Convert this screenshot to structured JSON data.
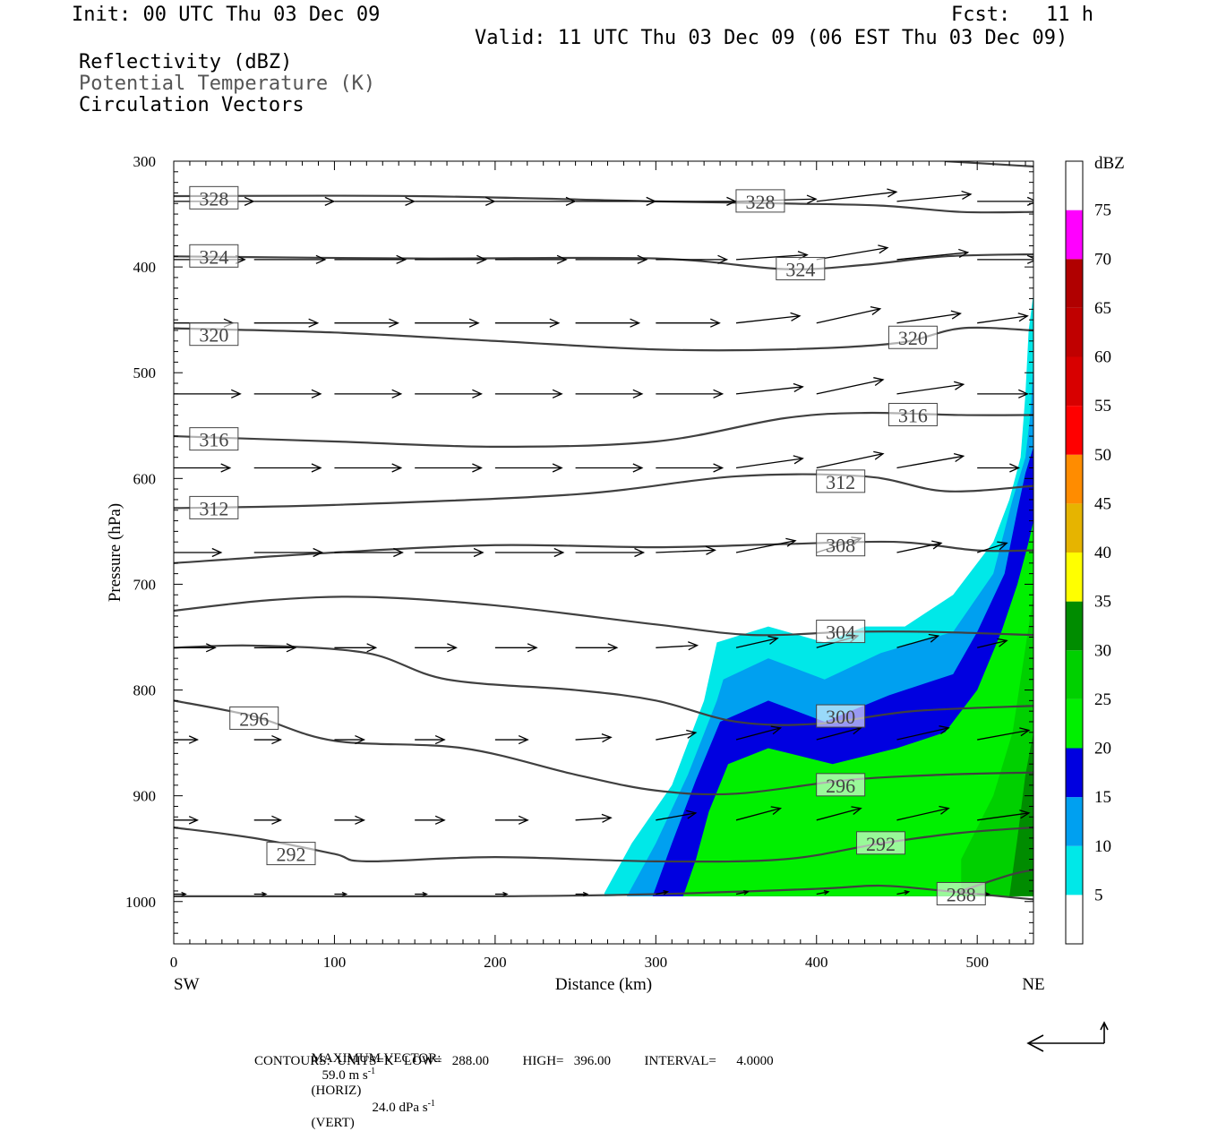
{
  "header": {
    "init": "Init: 00 UTC Thu 03 Dec 09",
    "fcst": "Fcst:   11 h",
    "valid": "Valid: 11 UTC Thu 03 Dec 09 (06 EST Thu 03 Dec 09)",
    "field1": "Reflectivity (dBZ)",
    "field2": "Potential Temperature (K)",
    "field3": "Circulation Vectors"
  },
  "footer": {
    "max_label": "MAXIMUM VECTOR:",
    "max_horiz": "59.0 m s",
    "horiz_tag": "(HORIZ)",
    "max_vert": "24.0 dPa s",
    "vert_tag": "(VERT)",
    "sup": "-1",
    "contours": "CONTOURS:  UNITS=K   LOW=   288.00          HIGH=   396.00          INTERVAL=      4.0000"
  },
  "colors": {
    "c5": "#00e8e8",
    "c10": "#00a0f0",
    "c15": "#0000e0",
    "c20": "#00f000",
    "c25": "#00d000",
    "c30": "#008c00",
    "c35": "#ffff00",
    "c40": "#e6b400",
    "c45": "#ff8c00",
    "c50": "#ff0000",
    "c55": "#d80000",
    "c60": "#c00000",
    "c65": "#b00000",
    "c70": "#ff00ff",
    "c75": "#9955cc",
    "contour": "#404040"
  },
  "chart_data": {
    "type": "cross-section",
    "xlabel": "Distance (km)",
    "ylabel": "Pressure (hPa)",
    "xlim": [
      0,
      535
    ],
    "ylim": [
      300,
      1040
    ],
    "x_ticks": [
      "0",
      "100",
      "200",
      "300",
      "400",
      "500"
    ],
    "y_ticks": [
      "300",
      "400",
      "500",
      "600",
      "700",
      "800",
      "900",
      "1000"
    ],
    "x_left": "SW",
    "x_right": "NE",
    "colorbar": {
      "unit": "dBZ",
      "levels": [
        "5",
        "10",
        "15",
        "20",
        "25",
        "30",
        "35",
        "40",
        "45",
        "50",
        "55",
        "60",
        "65",
        "70",
        "75"
      ]
    },
    "reflectivity_regions": [
      {
        "dbz": 5,
        "points": [
          [
            268,
            992
          ],
          [
            285,
            945
          ],
          [
            310,
            890
          ],
          [
            330,
            810
          ],
          [
            338,
            755
          ],
          [
            370,
            740
          ],
          [
            405,
            755
          ],
          [
            430,
            740
          ],
          [
            455,
            740
          ],
          [
            485,
            710
          ],
          [
            510,
            660
          ],
          [
            520,
            620
          ],
          [
            527,
            580
          ],
          [
            530,
            520
          ],
          [
            532,
            460
          ],
          [
            535,
            425
          ],
          [
            535,
            995
          ],
          [
            400,
            990
          ],
          [
            268,
            995
          ]
        ]
      },
      {
        "dbz": 10,
        "points": [
          [
            282,
            995
          ],
          [
            300,
            945
          ],
          [
            320,
            880
          ],
          [
            338,
            810
          ],
          [
            342,
            790
          ],
          [
            370,
            770
          ],
          [
            405,
            790
          ],
          [
            440,
            765
          ],
          [
            485,
            745
          ],
          [
            510,
            690
          ],
          [
            522,
            620
          ],
          [
            530,
            580
          ],
          [
            533,
            540
          ],
          [
            535,
            490
          ],
          [
            535,
            995
          ],
          [
            282,
            995
          ]
        ]
      },
      {
        "dbz": 15,
        "points": [
          [
            298,
            995
          ],
          [
            310,
            945
          ],
          [
            325,
            885
          ],
          [
            340,
            830
          ],
          [
            370,
            810
          ],
          [
            405,
            830
          ],
          [
            445,
            805
          ],
          [
            485,
            785
          ],
          [
            500,
            745
          ],
          [
            517,
            690
          ],
          [
            525,
            630
          ],
          [
            530,
            595
          ],
          [
            535,
            570
          ],
          [
            535,
            995
          ],
          [
            298,
            995
          ]
        ]
      },
      {
        "dbz": 20,
        "points": [
          [
            317,
            995
          ],
          [
            325,
            960
          ],
          [
            333,
            915
          ],
          [
            345,
            870
          ],
          [
            370,
            855
          ],
          [
            410,
            870
          ],
          [
            450,
            855
          ],
          [
            480,
            840
          ],
          [
            500,
            800
          ],
          [
            515,
            745
          ],
          [
            525,
            700
          ],
          [
            532,
            660
          ],
          [
            535,
            640
          ],
          [
            535,
            995
          ],
          [
            317,
            995
          ]
        ]
      },
      {
        "dbz": 25,
        "points": [
          [
            490,
            995
          ],
          [
            490,
            960
          ],
          [
            510,
            900
          ],
          [
            522,
            840
          ],
          [
            530,
            760
          ],
          [
            535,
            710
          ],
          [
            535,
            995
          ]
        ]
      },
      {
        "dbz": 30,
        "points": [
          [
            520,
            995
          ],
          [
            525,
            940
          ],
          [
            530,
            880
          ],
          [
            535,
            840
          ],
          [
            535,
            995
          ]
        ]
      }
    ],
    "theta_contours": [
      {
        "label": "328",
        "points": [
          [
            0,
            333
          ],
          [
            150,
            333
          ],
          [
            300,
            338
          ],
          [
            380,
            340
          ],
          [
            440,
            342
          ],
          [
            490,
            348
          ],
          [
            535,
            348
          ]
        ]
      },
      {
        "label": "324",
        "points": [
          [
            0,
            390
          ],
          [
            150,
            392
          ],
          [
            300,
            392
          ],
          [
            380,
            402
          ],
          [
            430,
            398
          ],
          [
            480,
            390
          ],
          [
            535,
            388
          ]
        ]
      },
      {
        "label": "320",
        "points": [
          [
            0,
            458
          ],
          [
            100,
            462
          ],
          [
            200,
            470
          ],
          [
            300,
            478
          ],
          [
            380,
            478
          ],
          [
            450,
            472
          ],
          [
            490,
            458
          ],
          [
            535,
            460
          ]
        ]
      },
      {
        "label": "316",
        "points": [
          [
            0,
            560
          ],
          [
            100,
            565
          ],
          [
            200,
            570
          ],
          [
            300,
            565
          ],
          [
            380,
            543
          ],
          [
            430,
            538
          ],
          [
            490,
            540
          ],
          [
            535,
            540
          ]
        ]
      },
      {
        "label": "312",
        "points": [
          [
            0,
            628
          ],
          [
            100,
            625
          ],
          [
            250,
            615
          ],
          [
            350,
            598
          ],
          [
            430,
            598
          ],
          [
            480,
            612
          ],
          [
            535,
            607
          ]
        ]
      },
      {
        "label": "308",
        "points": [
          [
            0,
            680
          ],
          [
            100,
            670
          ],
          [
            200,
            663
          ],
          [
            300,
            665
          ],
          [
            380,
            662
          ],
          [
            450,
            660
          ],
          [
            500,
            668
          ],
          [
            535,
            668
          ]
        ]
      },
      {
        "label": "304",
        "points": [
          [
            0,
            725
          ],
          [
            60,
            715
          ],
          [
            120,
            712
          ],
          [
            200,
            720
          ],
          [
            300,
            738
          ],
          [
            360,
            748
          ],
          [
            420,
            745
          ],
          [
            470,
            745
          ],
          [
            535,
            748
          ]
        ]
      },
      {
        "label": "300",
        "points": [
          [
            0,
            760
          ],
          [
            50,
            758
          ],
          [
            120,
            765
          ],
          [
            170,
            790
          ],
          [
            250,
            800
          ],
          [
            300,
            810
          ],
          [
            350,
            830
          ],
          [
            400,
            832
          ],
          [
            460,
            820
          ],
          [
            535,
            815
          ]
        ]
      },
      {
        "label": "296",
        "points": [
          [
            0,
            810
          ],
          [
            50,
            825
          ],
          [
            100,
            848
          ],
          [
            180,
            855
          ],
          [
            250,
            880
          ],
          [
            300,
            895
          ],
          [
            350,
            898
          ],
          [
            420,
            885
          ],
          [
            480,
            880
          ],
          [
            535,
            878
          ]
        ]
      },
      {
        "label": "292",
        "points": [
          [
            0,
            930
          ],
          [
            50,
            940
          ],
          [
            100,
            955
          ],
          [
            120,
            962
          ],
          [
            200,
            958
          ],
          [
            300,
            962
          ],
          [
            380,
            960
          ],
          [
            440,
            945
          ],
          [
            490,
            935
          ],
          [
            535,
            930
          ]
        ]
      },
      {
        "label": "288",
        "points": [
          [
            0,
            995
          ],
          [
            200,
            995
          ],
          [
            300,
            993
          ],
          [
            400,
            988
          ],
          [
            440,
            985
          ],
          [
            480,
            990
          ],
          [
            535,
            998
          ]
        ]
      },
      {
        "label": "",
        "points": [
          [
            490,
            990
          ],
          [
            520,
            975
          ],
          [
            535,
            970
          ]
        ]
      },
      {
        "label": "",
        "points": [
          [
            480,
            300
          ],
          [
            535,
            305
          ]
        ]
      }
    ],
    "contour_labels": [
      {
        "text": "328",
        "x": 25,
        "p": 335
      },
      {
        "text": "328",
        "x": 365,
        "p": 338
      },
      {
        "text": "324",
        "x": 25,
        "p": 390
      },
      {
        "text": "324",
        "x": 390,
        "p": 402
      },
      {
        "text": "320",
        "x": 25,
        "p": 464
      },
      {
        "text": "320",
        "x": 460,
        "p": 467
      },
      {
        "text": "316",
        "x": 25,
        "p": 563
      },
      {
        "text": "316",
        "x": 460,
        "p": 540
      },
      {
        "text": "312",
        "x": 25,
        "p": 628
      },
      {
        "text": "312",
        "x": 415,
        "p": 603
      },
      {
        "text": "308",
        "x": 415,
        "p": 663
      },
      {
        "text": "304",
        "x": 415,
        "p": 745
      },
      {
        "text": "300",
        "x": 415,
        "p": 825
      },
      {
        "text": "296",
        "x": 50,
        "p": 827
      },
      {
        "text": "296",
        "x": 415,
        "p": 890
      },
      {
        "text": "292",
        "x": 73,
        "p": 955
      },
      {
        "text": "292",
        "x": 440,
        "p": 945
      },
      {
        "text": "288",
        "x": 490,
        "p": 993
      }
    ],
    "vector_rows": [
      {
        "p": 338,
        "x": [
          0,
          50,
          100,
          150,
          200,
          250,
          300,
          350,
          400,
          450,
          500
        ]
      },
      {
        "p": 393,
        "x": [
          0,
          50,
          100,
          150,
          200,
          250,
          300,
          350,
          400,
          450,
          500
        ]
      },
      {
        "p": 453,
        "x": [
          0,
          50,
          100,
          150,
          200,
          250,
          300,
          350,
          400,
          450,
          500
        ]
      },
      {
        "p": 520,
        "x": [
          0,
          50,
          100,
          150,
          200,
          250,
          300,
          350,
          400,
          450,
          500
        ]
      },
      {
        "p": 590,
        "x": [
          0,
          50,
          100,
          150,
          200,
          250,
          300,
          350,
          400,
          450,
          500
        ]
      },
      {
        "p": 670,
        "x": [
          0,
          50,
          100,
          150,
          200,
          250,
          300,
          350,
          400,
          450,
          500
        ]
      },
      {
        "p": 760,
        "x": [
          0,
          50,
          100,
          150,
          200,
          250,
          300,
          350,
          400,
          450,
          500
        ]
      },
      {
        "p": 847,
        "x": [
          0,
          50,
          100,
          150,
          200,
          250,
          300,
          350,
          400,
          450,
          500
        ]
      },
      {
        "p": 923,
        "x": [
          0,
          50,
          100,
          150,
          200,
          250,
          300,
          350,
          400,
          450,
          500
        ]
      },
      {
        "p": 993,
        "x": [
          0,
          50,
          100,
          150,
          200,
          250,
          300,
          350,
          400,
          450,
          500
        ]
      }
    ],
    "vector_u": [
      [
        54,
        54,
        54,
        54,
        54,
        54,
        54,
        54,
        54,
        50,
        40
      ],
      [
        48,
        48,
        48,
        48,
        48,
        48,
        48,
        48,
        48,
        48,
        40
      ],
      [
        40,
        43,
        43,
        43,
        43,
        43,
        43,
        43,
        43,
        43,
        34
      ],
      [
        45,
        45,
        45,
        45,
        45,
        45,
        45,
        45,
        45,
        45,
        34
      ],
      [
        38,
        45,
        45,
        45,
        45,
        45,
        45,
        45,
        45,
        45,
        28
      ],
      [
        32,
        46,
        46,
        46,
        46,
        46,
        40,
        40,
        30,
        30,
        20
      ],
      [
        28,
        28,
        28,
        28,
        28,
        28,
        28,
        28,
        28,
        28,
        20
      ],
      [
        16,
        18,
        20,
        20,
        22,
        24,
        27,
        30,
        30,
        35,
        35
      ],
      [
        16,
        18,
        20,
        20,
        22,
        24,
        27,
        30,
        30,
        35,
        35
      ],
      [
        8,
        8,
        8,
        8,
        8,
        8,
        8,
        8,
        8,
        8,
        8
      ]
    ],
    "vector_w": [
      [
        0,
        0,
        0,
        0,
        0,
        0,
        0,
        1,
        4,
        3,
        0
      ],
      [
        0,
        0,
        0,
        0,
        0,
        0,
        0,
        2,
        5,
        3,
        0
      ],
      [
        0,
        0,
        0,
        0,
        0,
        0,
        0,
        3,
        6,
        4,
        3
      ],
      [
        0,
        0,
        0,
        0,
        0,
        0,
        0,
        3,
        6,
        4,
        0
      ],
      [
        0,
        0,
        0,
        0,
        0,
        0,
        0,
        4,
        6,
        5,
        0
      ],
      [
        0,
        0,
        0,
        0,
        0,
        0,
        1,
        5,
        6,
        4,
        4
      ],
      [
        0,
        0,
        0,
        0,
        0,
        0,
        1,
        4,
        5,
        5,
        3
      ],
      [
        0,
        0,
        0,
        0,
        0,
        1,
        3,
        5,
        5,
        5,
        4
      ],
      [
        0,
        0,
        0,
        0,
        0,
        1,
        3,
        5,
        5,
        5,
        3
      ],
      [
        0,
        0,
        0,
        0,
        0,
        0,
        1,
        1,
        1,
        1,
        0
      ]
    ]
  }
}
